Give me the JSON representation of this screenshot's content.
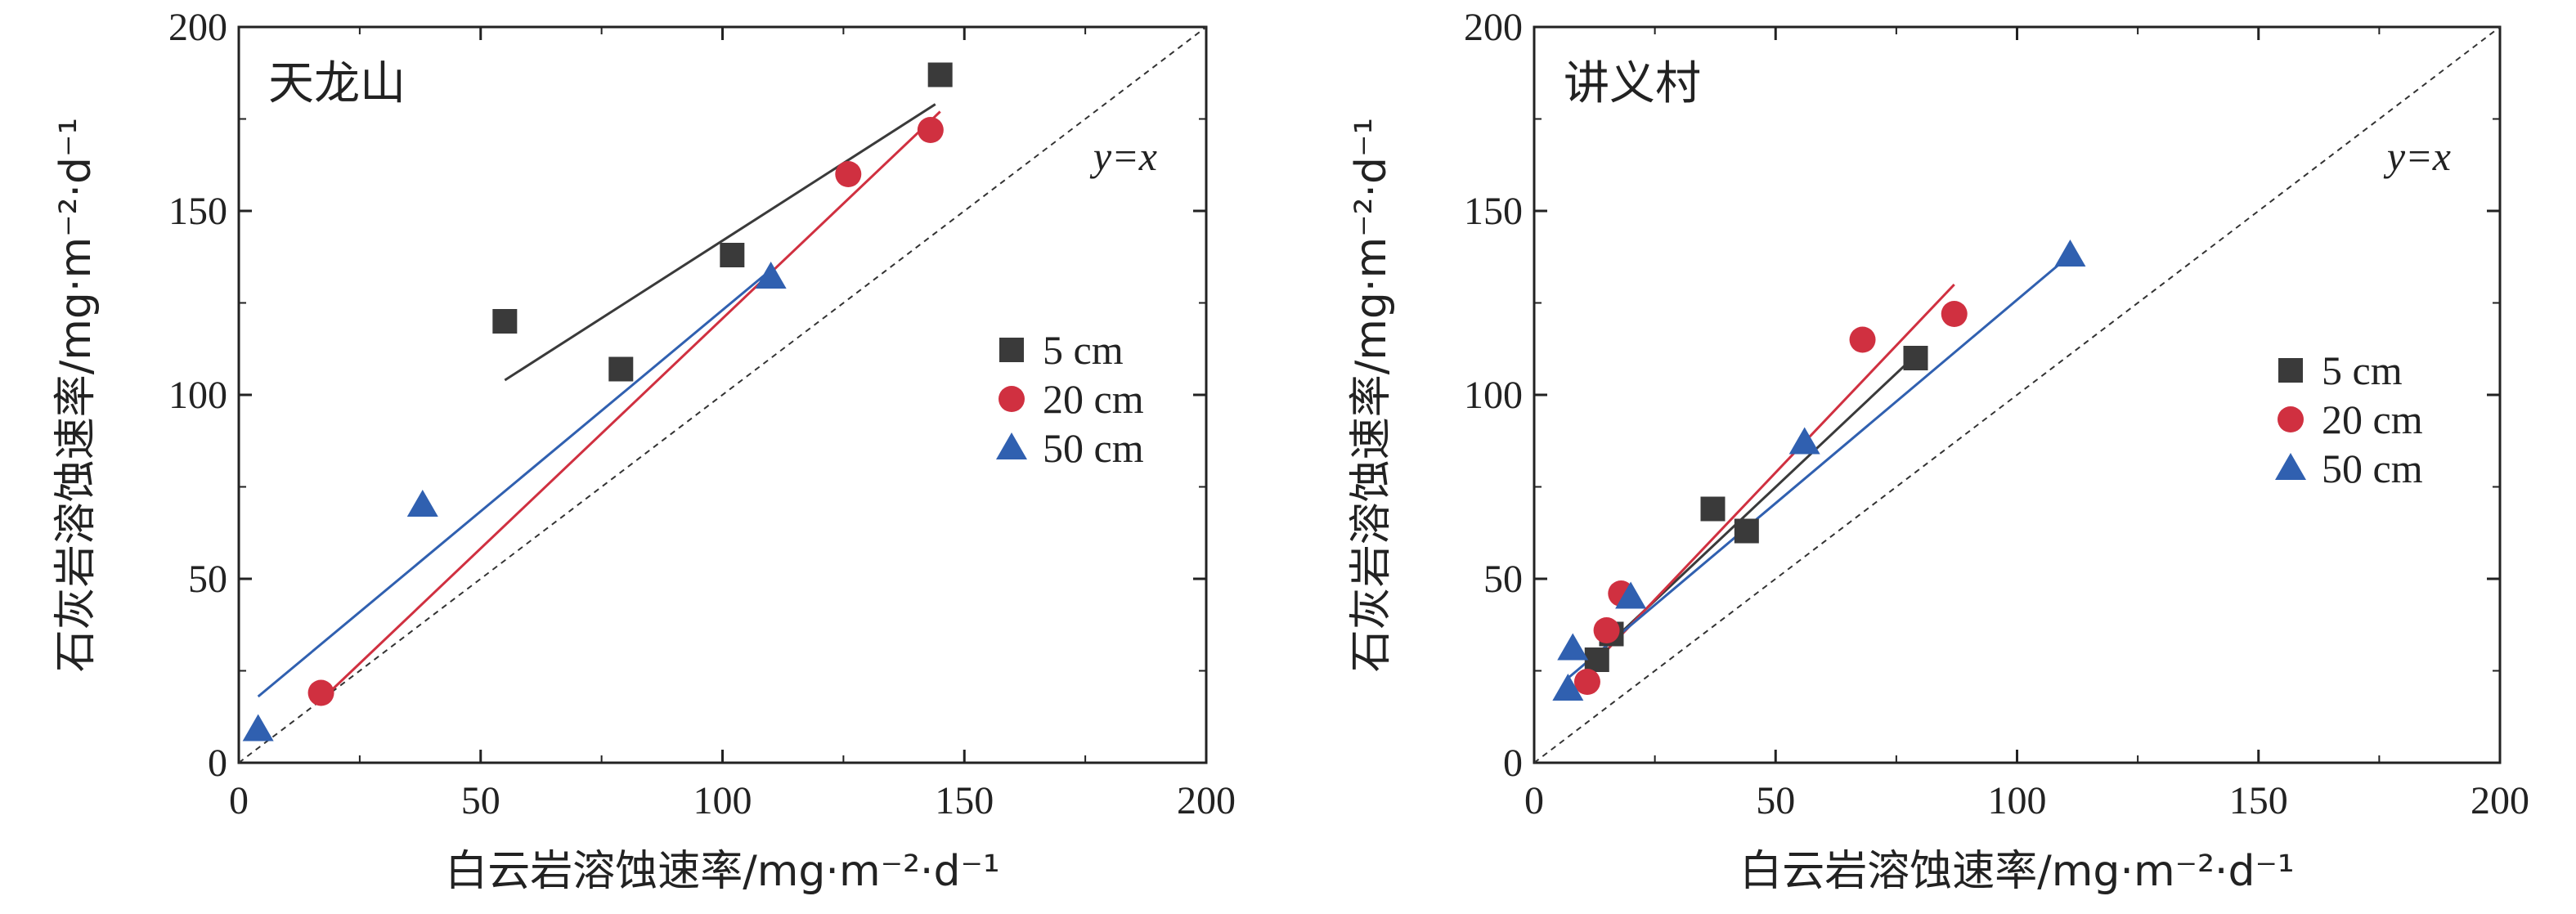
{
  "chart_data": [
    {
      "type": "scatter",
      "title": "天龙山",
      "xlabel": "白云岩溶蚀速率/mg·m⁻²·d⁻¹",
      "ylabel": "石灰岩溶蚀速率/mg·m⁻²·d⁻¹",
      "xlim": [
        0,
        200
      ],
      "ylim": [
        0,
        200
      ],
      "xticks": [
        "0",
        "50",
        "100",
        "150",
        "200"
      ],
      "yticks": [
        "0",
        "50",
        "100",
        "150",
        "200"
      ],
      "annotation": "y=x",
      "legend_position": "right",
      "series": [
        {
          "name": "5 cm",
          "marker": "square",
          "color": "#3a3a3a",
          "points": [
            [
              55,
              120
            ],
            [
              79,
              107
            ],
            [
              102,
              138
            ],
            [
              145,
              187
            ]
          ],
          "fit": [
            [
              55,
              104
            ],
            [
              144,
              179
            ]
          ]
        },
        {
          "name": "20 cm",
          "marker": "circle",
          "color": "#d03040",
          "points": [
            [
              17,
              19
            ],
            [
              126,
              160
            ],
            [
              143,
              172
            ]
          ],
          "fit": [
            [
              17,
              17
            ],
            [
              145,
              177
            ]
          ]
        },
        {
          "name": "50 cm",
          "marker": "triangle",
          "color": "#3060b0",
          "points": [
            [
              4,
              9
            ],
            [
              38,
              70
            ],
            [
              110,
              132
            ]
          ],
          "fit": [
            [
              4,
              18
            ],
            [
              110,
              134
            ]
          ]
        }
      ]
    },
    {
      "type": "scatter",
      "title": "讲义村",
      "xlabel": "白云岩溶蚀速率/mg·m⁻²·d⁻¹",
      "ylabel": "石灰岩溶蚀速率/mg·m⁻²·d⁻¹",
      "xlim": [
        0,
        200
      ],
      "ylim": [
        0,
        200
      ],
      "xticks": [
        "0",
        "50",
        "100",
        "150",
        "200"
      ],
      "yticks": [
        "0",
        "50",
        "100",
        "150",
        "200"
      ],
      "annotation": "y=x",
      "legend_position": "right",
      "series": [
        {
          "name": "5 cm",
          "marker": "square",
          "color": "#3a3a3a",
          "points": [
            [
              13,
              28
            ],
            [
              16,
              35
            ],
            [
              37,
              69
            ],
            [
              44,
              63
            ],
            [
              79,
              110
            ]
          ],
          "fit": [
            [
              12,
              28
            ],
            [
              80,
              112
            ]
          ]
        },
        {
          "name": "20 cm",
          "marker": "circle",
          "color": "#d03040",
          "points": [
            [
              11,
              22
            ],
            [
              15,
              36
            ],
            [
              18,
              46
            ],
            [
              68,
              115
            ],
            [
              87,
              122
            ]
          ],
          "fit": [
            [
              11,
              25
            ],
            [
              87,
              130
            ]
          ]
        },
        {
          "name": "50 cm",
          "marker": "triangle",
          "color": "#3060b0",
          "points": [
            [
              7,
              20
            ],
            [
              8,
              31
            ],
            [
              20,
              45
            ],
            [
              56,
              87
            ],
            [
              111,
              138
            ]
          ],
          "fit": [
            [
              7,
              23
            ],
            [
              111,
              138
            ]
          ]
        }
      ]
    }
  ]
}
